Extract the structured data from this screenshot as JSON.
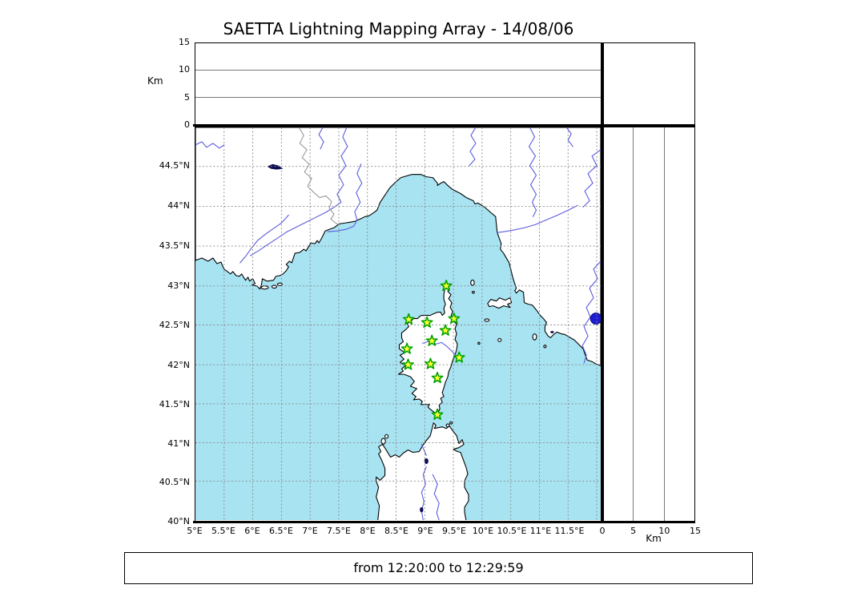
{
  "title": "SAETTA Lightning Mapping Array - 14/08/06",
  "footer": {
    "time_range": "from 12:20:00 to 12:29:59"
  },
  "altitude_axis": {
    "unit": "Km",
    "ticks": [
      0,
      5,
      10,
      15
    ],
    "range_km": [
      0,
      15
    ],
    "gridlines_km": [
      5,
      10
    ]
  },
  "bottom_altitude_axis": {
    "unit": "Km",
    "ticks": [
      0,
      5,
      10,
      15
    ]
  },
  "map": {
    "lon_labels": [
      "5°E",
      "5.5°E",
      "6°E",
      "6.5°E",
      "7°E",
      "7.5°E",
      "8°E",
      "8.5°E",
      "9°E",
      "9.5°E",
      "10°E",
      "10.5°E",
      "11°E",
      "11.5°E"
    ],
    "lat_labels": [
      "40°N",
      "40.5°N",
      "41°N",
      "41.5°N",
      "42°N",
      "42.5°N",
      "43°N",
      "43.5°N",
      "44°N",
      "44.5°N"
    ],
    "lon_range_deg": [
      5.0,
      12.07
    ],
    "lat_range_deg": [
      40.0,
      45.0
    ],
    "colors": {
      "sea": "#a8e3f2",
      "land": "#ffffff",
      "coast": "#000000",
      "river": "#5b5be0",
      "country_border": "#8f8f8f",
      "grid": "#898989",
      "station_fill": "#ffff33",
      "station_stroke": "#00a300"
    },
    "stations": [
      {
        "lon": 9.375,
        "lat": 43.0
      },
      {
        "lon": 8.72,
        "lat": 42.57
      },
      {
        "lon": 9.04,
        "lat": 42.53
      },
      {
        "lon": 9.51,
        "lat": 42.58
      },
      {
        "lon": 9.36,
        "lat": 42.43
      },
      {
        "lon": 9.125,
        "lat": 42.3
      },
      {
        "lon": 8.69,
        "lat": 42.2
      },
      {
        "lon": 9.6,
        "lat": 42.09
      },
      {
        "lon": 9.1,
        "lat": 42.01
      },
      {
        "lon": 8.71,
        "lat": 42.0
      },
      {
        "lon": 9.22,
        "lat": 41.83
      },
      {
        "lon": 9.22,
        "lat": 41.36
      }
    ]
  }
}
